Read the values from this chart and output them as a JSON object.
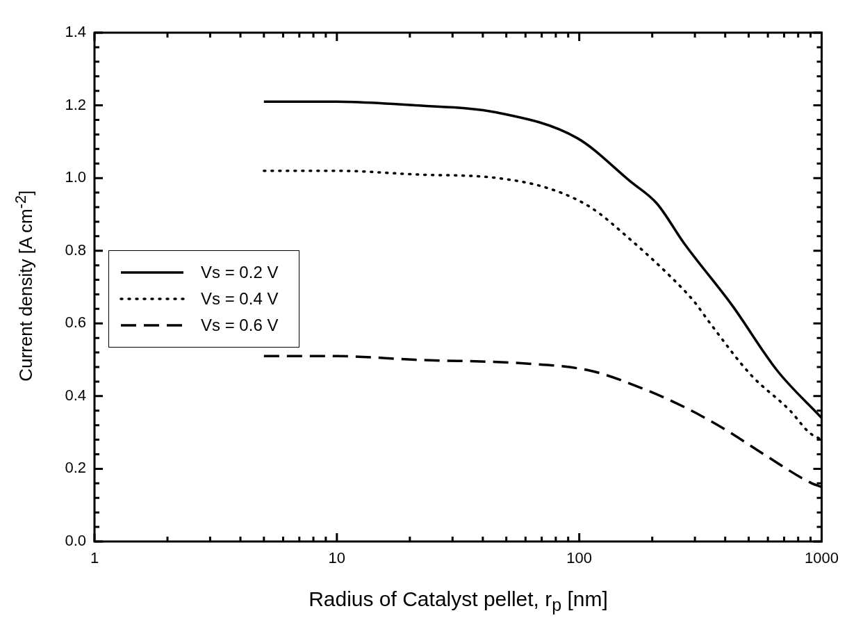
{
  "chart_data": {
    "type": "line",
    "xlabel": "Radius of Catalyst pellet, r$_{p}$ [nm]",
    "ylabel": "Current density [A cm$^{-2}$]",
    "log": "x",
    "legend": "left",
    "xlim": [
      1,
      1000
    ],
    "ylim": [
      0,
      1.4
    ],
    "xticks": [
      1,
      {
        "value": 2,
        "label": null
      },
      {
        "value": 3,
        "label": null
      },
      {
        "value": 4,
        "label": null
      },
      {
        "value": 5,
        "label": null
      },
      {
        "value": 6,
        "label": null
      },
      {
        "value": 7,
        "label": null
      },
      {
        "value": 8,
        "label": null
      },
      {
        "value": 9,
        "label": null
      },
      10,
      {
        "value": 20,
        "label": null
      },
      {
        "value": 30,
        "label": null
      },
      {
        "value": 40,
        "label": null
      },
      {
        "value": 50,
        "label": null
      },
      {
        "value": 60,
        "label": null
      },
      {
        "value": 70,
        "label": null
      },
      {
        "value": 80,
        "label": null
      },
      {
        "value": 90,
        "label": null
      },
      100,
      {
        "value": 200,
        "label": null
      },
      {
        "value": 300,
        "label": null
      },
      {
        "value": 400,
        "label": null
      },
      {
        "value": 500,
        "label": null
      },
      {
        "value": 600,
        "label": null
      },
      {
        "value": 700,
        "label": null
      },
      {
        "value": 800,
        "label": null
      },
      {
        "value": 900,
        "label": null
      },
      1000
    ],
    "yticks": [
      {
        "value": 0,
        "label": "0.0"
      },
      {
        "value": 0.04,
        "label": null
      },
      {
        "value": 0.08,
        "label": null
      },
      {
        "value": 0.12,
        "label": null
      },
      {
        "value": 0.16,
        "label": null
      },
      {
        "value": 0.2,
        "label": "0.2"
      },
      {
        "value": 0.24,
        "label": null
      },
      {
        "value": 0.28,
        "label": null
      },
      {
        "value": 0.32,
        "label": null
      },
      {
        "value": 0.36,
        "label": null
      },
      {
        "value": 0.4,
        "label": "0.4"
      },
      {
        "value": 0.44,
        "label": null
      },
      {
        "value": 0.48,
        "label": null
      },
      {
        "value": 0.52,
        "label": null
      },
      {
        "value": 0.56,
        "label": null
      },
      {
        "value": 0.6,
        "label": "0.6"
      },
      {
        "value": 0.64,
        "label": null
      },
      {
        "value": 0.68,
        "label": null
      },
      {
        "value": 0.72,
        "label": null
      },
      {
        "value": 0.76,
        "label": null
      },
      {
        "value": 0.8,
        "label": "0.8"
      },
      {
        "value": 0.84,
        "label": null
      },
      {
        "value": 0.88,
        "label": null
      },
      {
        "value": 0.92,
        "label": null
      },
      {
        "value": 0.96,
        "label": null
      },
      {
        "value": 1.0,
        "label": "1.0"
      },
      {
        "value": 1.04,
        "label": null
      },
      {
        "value": 1.08,
        "label": null
      },
      {
        "value": 1.12,
        "label": null
      },
      {
        "value": 1.16,
        "label": null
      },
      {
        "value": 1.2,
        "label": "1.2"
      },
      {
        "value": 1.24,
        "label": null
      },
      {
        "value": 1.28,
        "label": null
      },
      {
        "value": 1.32,
        "label": null
      },
      {
        "value": 1.36,
        "label": null
      },
      {
        "value": 1.4,
        "label": "1.4"
      }
    ],
    "series": [
      {
        "name": "Vs = 0.2 V",
        "color": "#000000",
        "line_style": "solid",
        "x": [
          5,
          10,
          21,
          46,
          98,
          163,
          209,
          271,
          427,
          656,
          1000
        ],
        "values": [
          1.21,
          1.21,
          1.2,
          1.18,
          1.11,
          0.99,
          0.93,
          0.82,
          0.65,
          0.47,
          0.34
        ]
      },
      {
        "name": "Vs = 0.4 V",
        "color": "#000000",
        "line_style": "dotted",
        "x": [
          5,
          10,
          21,
          46,
          76,
          111,
          163,
          237,
          298,
          347,
          508,
          741,
          888,
          1000
        ],
        "values": [
          1.02,
          1.02,
          1.01,
          1.0,
          0.97,
          0.92,
          0.83,
          0.73,
          0.66,
          0.6,
          0.46,
          0.36,
          0.3,
          0.28
        ]
      },
      {
        "name": "Vs = 0.6 V",
        "color": "#000000",
        "line_style": "dashed",
        "x": [
          5,
          10,
          21,
          59,
          111,
          184,
          271,
          396,
          577,
          911,
          1000
        ],
        "values": [
          0.51,
          0.51,
          0.5,
          0.49,
          0.47,
          0.42,
          0.37,
          0.31,
          0.24,
          0.16,
          0.15
        ]
      }
    ]
  }
}
